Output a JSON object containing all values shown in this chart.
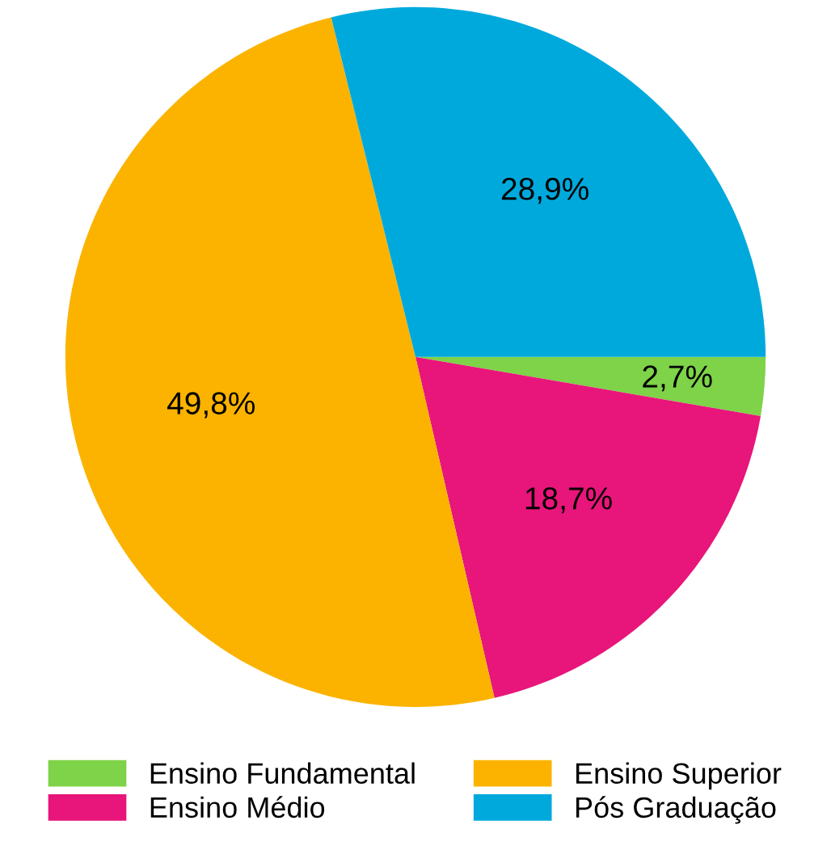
{
  "chart_data": {
    "type": "pie",
    "categories": [
      "Ensino Fundamental",
      "Ensino Médio",
      "Ensino Superior",
      "Pós Graduação"
    ],
    "values": [
      2.7,
      18.7,
      49.8,
      28.9
    ],
    "value_labels": [
      "2,7%",
      "18,7%",
      "49,8%",
      "28,9%"
    ],
    "colors": [
      "#7ed348",
      "#e8157a",
      "#fbb300",
      "#00a9dc"
    ],
    "legend": "bottom"
  }
}
